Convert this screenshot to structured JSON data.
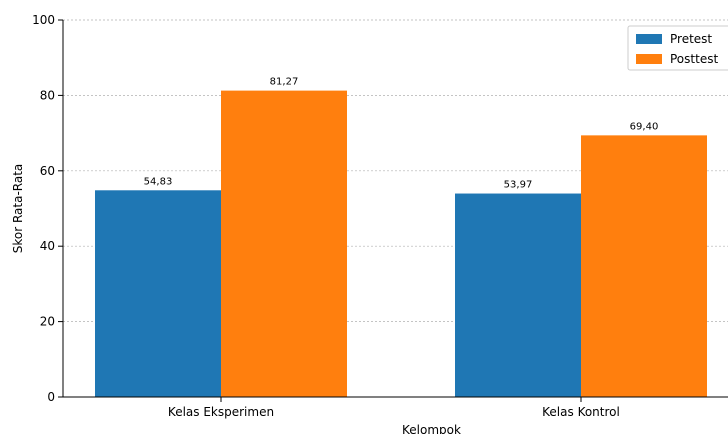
{
  "chart_data": {
    "type": "bar",
    "categories": [
      "Kelas Eksperimen",
      "Kelas Kontrol"
    ],
    "series": [
      {
        "name": "Pretest",
        "values": [
          54.83,
          53.97
        ],
        "labels": [
          "54,83",
          "53,97"
        ],
        "color": "#1f77b4"
      },
      {
        "name": "Posttest",
        "values": [
          81.27,
          69.4
        ],
        "labels": [
          "81,27",
          "69,40"
        ],
        "color": "#ff7f0e"
      }
    ],
    "title": "",
    "xlabel": "Kelompok",
    "ylabel": "Skor Rata-Rata",
    "ylim": [
      0,
      100
    ],
    "yticks": [
      0,
      20,
      40,
      60,
      80,
      100
    ],
    "ytick_labels": [
      "0",
      "20",
      "40",
      "60",
      "80",
      "100"
    ],
    "grid": "horizontal dotted",
    "legend_position": "top-right"
  }
}
